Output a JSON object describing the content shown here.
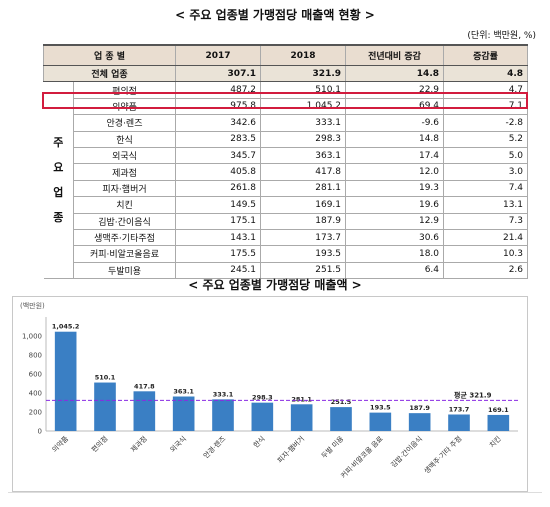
{
  "table": {
    "title": "< 주요 업종별 가맹점당 매출액 현황 >",
    "unit": "(단위: 백만원, %)",
    "headers": {
      "category": "업 종 별",
      "y2017": "2017",
      "y2018": "2018",
      "yoy": "전년대비 증감",
      "rate": "증감률"
    },
    "total": {
      "name": "전체 업종",
      "y2017": "307.1",
      "y2018": "321.9",
      "yoy": "14.8",
      "rate": "4.8"
    },
    "side_label": [
      "주",
      "요",
      "업",
      "종"
    ],
    "rows": [
      {
        "name": "편의점",
        "y2017": "487.2",
        "y2018": "510.1",
        "yoy": "22.9",
        "rate": "4.7"
      },
      {
        "name": "의약품",
        "y2017": "975.8",
        "y2018": "1,045.2",
        "yoy": "69.4",
        "rate": "7.1"
      },
      {
        "name": "안경·렌즈",
        "y2017": "342.6",
        "y2018": "333.1",
        "yoy": "-9.6",
        "rate": "-2.8"
      },
      {
        "name": "한식",
        "y2017": "283.5",
        "y2018": "298.3",
        "yoy": "14.8",
        "rate": "5.2"
      },
      {
        "name": "외국식",
        "y2017": "345.7",
        "y2018": "363.1",
        "yoy": "17.4",
        "rate": "5.0"
      },
      {
        "name": "제과점",
        "y2017": "405.8",
        "y2018": "417.8",
        "yoy": "12.0",
        "rate": "3.0"
      },
      {
        "name": "피자·햄버거",
        "y2017": "261.8",
        "y2018": "281.1",
        "yoy": "19.3",
        "rate": "7.4"
      },
      {
        "name": "치킨",
        "y2017": "149.5",
        "y2018": "169.1",
        "yoy": "19.6",
        "rate": "13.1"
      },
      {
        "name": "김밥·간이음식",
        "y2017": "175.1",
        "y2018": "187.9",
        "yoy": "12.9",
        "rate": "7.3"
      },
      {
        "name": "생맥주·기타주점",
        "y2017": "143.1",
        "y2018": "173.7",
        "yoy": "30.6",
        "rate": "21.4"
      },
      {
        "name": "커피·비알코올음료",
        "y2017": "175.5",
        "y2018": "193.5",
        "yoy": "18.0",
        "rate": "10.3"
      },
      {
        "name": "두발미용",
        "y2017": "245.1",
        "y2018": "251.5",
        "yoy": "6.4",
        "rate": "2.6"
      }
    ]
  },
  "chart_title": "< 주요 업종별 가맹점당 매출액 >",
  "chart_data": {
    "type": "bar",
    "ylabel": "(백만원)",
    "ylim": [
      0,
      1200
    ],
    "yticks": [
      "0",
      "200",
      "400",
      "600",
      "800",
      "1,000"
    ],
    "categories": [
      "의약품",
      "편의점",
      "제과점",
      "외국식",
      "안경·렌즈",
      "한식",
      "피자·햄버거",
      "두발 미용",
      "커피·비알코올 음료",
      "김밥·간이음식",
      "생맥주·기타 주점",
      "치킨"
    ],
    "values": [
      1045.2,
      510.1,
      417.8,
      363.1,
      333.1,
      298.3,
      281.1,
      251.5,
      193.5,
      187.9,
      173.7,
      169.1
    ],
    "labels": [
      "1,045.2",
      "510.1",
      "417.8",
      "363.1",
      "333.1",
      "298.3",
      "281.1",
      "251.5",
      "193.5",
      "187.9",
      "173.7",
      "169.1"
    ],
    "average": {
      "label": "평균 321.9",
      "value": 321.9
    },
    "bar_color": "#3a7fc4",
    "avg_color": "#8a2be2",
    "grid": false
  }
}
